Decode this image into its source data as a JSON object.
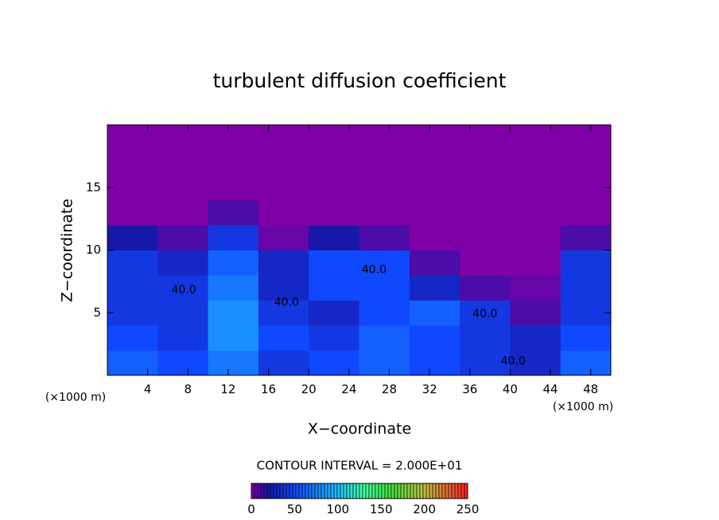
{
  "chart_data": {
    "type": "heatmap",
    "title": "turbulent diffusion coefficient",
    "x_label": "X−coordinate",
    "y_label": "Z−coordinate",
    "x_unit_label": "(×1000 m)",
    "xlim": [
      0,
      50
    ],
    "ylim": [
      0,
      20
    ],
    "xticks": [
      4,
      8,
      12,
      16,
      20,
      24,
      28,
      32,
      36,
      40,
      44,
      48
    ],
    "yticks": [
      5,
      10,
      15
    ],
    "x_bins": [
      0,
      5,
      10,
      15,
      20,
      25,
      30,
      35,
      40,
      45,
      50
    ],
    "y_bins": [
      0,
      2,
      4,
      6,
      8,
      10,
      12,
      14,
      16,
      18,
      20
    ],
    "values": [
      [
        60,
        50,
        70,
        40,
        50,
        60,
        50,
        40,
        30,
        60
      ],
      [
        50,
        40,
        80,
        50,
        40,
        60,
        50,
        40,
        30,
        50
      ],
      [
        40,
        40,
        80,
        40,
        30,
        50,
        60,
        40,
        10,
        40
      ],
      [
        40,
        40,
        70,
        30,
        50,
        50,
        30,
        10,
        5,
        40
      ],
      [
        40,
        30,
        60,
        30,
        50,
        50,
        10,
        0,
        0,
        40
      ],
      [
        20,
        10,
        40,
        5,
        20,
        10,
        0,
        0,
        0,
        10
      ],
      [
        0,
        0,
        10,
        0,
        0,
        0,
        0,
        0,
        0,
        0
      ],
      [
        0,
        0,
        0,
        0,
        0,
        0,
        0,
        0,
        0,
        0
      ],
      [
        0,
        0,
        0,
        0,
        0,
        0,
        0,
        0,
        0,
        0
      ],
      [
        0,
        0,
        0,
        0,
        0,
        0,
        0,
        0,
        0,
        0
      ]
    ],
    "colorscale": [
      [
        0,
        "#8000a8"
      ],
      [
        20,
        "#1818a8"
      ],
      [
        50,
        "#1048ff"
      ],
      [
        100,
        "#20c0ff"
      ],
      [
        130,
        "#40ffa0"
      ],
      [
        160,
        "#40e040"
      ],
      [
        200,
        "#c0c040"
      ],
      [
        250,
        "#ff2020"
      ]
    ],
    "contour_interval": "CONTOUR INTERVAL = 2.000E+01",
    "colorbar_lim": [
      0,
      250
    ],
    "colorbar_ticks": [
      0,
      50,
      100,
      150,
      200,
      250
    ],
    "annotations": [
      {
        "text": "40.0",
        "x": 7.6,
        "y": 6.8
      },
      {
        "text": "40.0",
        "x": 17.8,
        "y": 5.8
      },
      {
        "text": "40.0",
        "x": 26.5,
        "y": 8.4
      },
      {
        "text": "40.0",
        "x": 37.5,
        "y": 4.9
      },
      {
        "text": "40.0",
        "x": 40.3,
        "y": 1.1
      }
    ]
  }
}
